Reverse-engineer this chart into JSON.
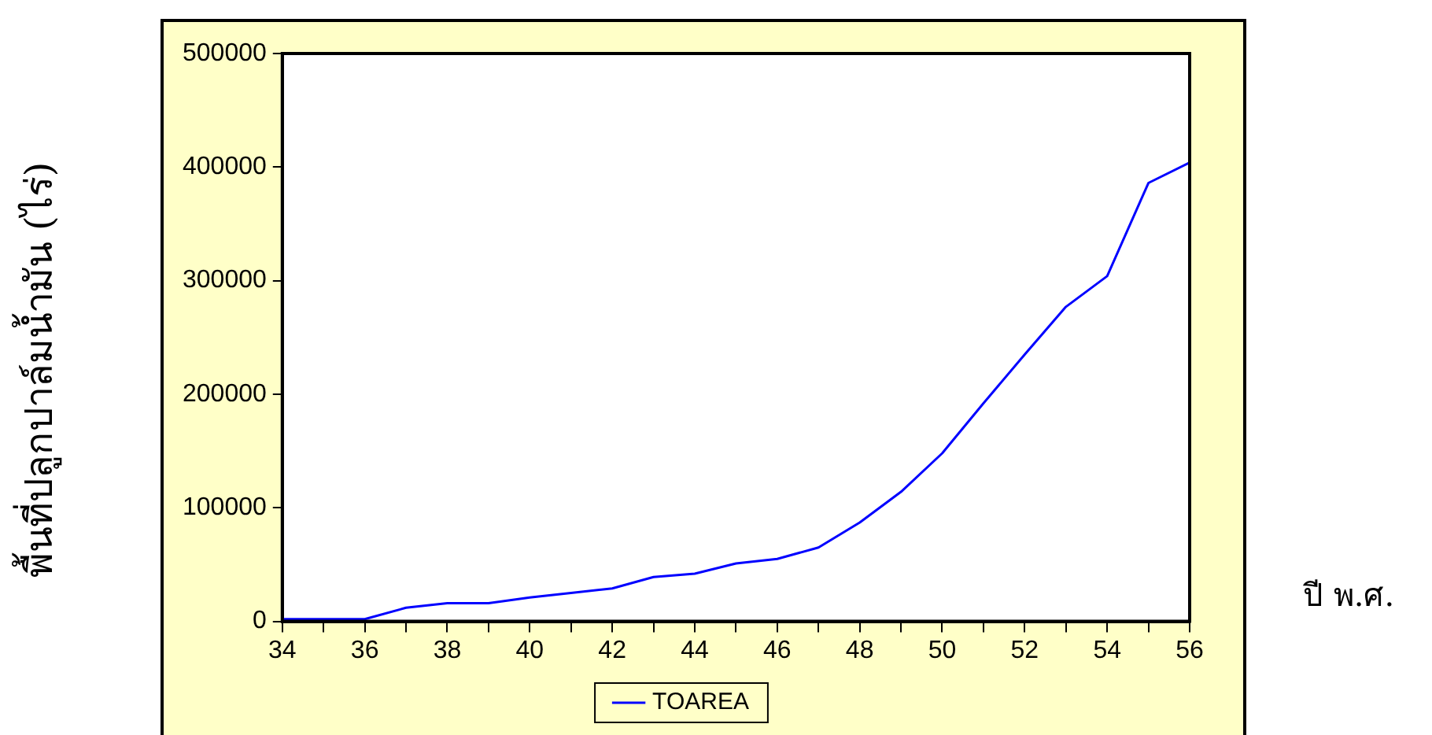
{
  "chart_data": {
    "type": "line",
    "xlabel": "ปี พ.ศ.",
    "ylabel": "พื้นที่ปลูกปาล์มน้ำมัน (ไร่)",
    "x": [
      34,
      35,
      36,
      37,
      38,
      39,
      40,
      41,
      42,
      43,
      44,
      45,
      46,
      47,
      48,
      49,
      50,
      51,
      52,
      53,
      54,
      55,
      56
    ],
    "series": [
      {
        "name": "TOAREA",
        "color": "#0000ff",
        "values": [
          2000,
          2000,
          2000,
          12000,
          16000,
          16000,
          21000,
          25000,
          29000,
          39000,
          42000,
          51000,
          55000,
          65000,
          87000,
          114000,
          148000,
          192000,
          235000,
          277000,
          304000,
          386000,
          404000
        ]
      }
    ],
    "xlim": [
      34,
      56
    ],
    "xticks": [
      34,
      {
        "value": 35,
        "label": null
      },
      36,
      {
        "value": 37,
        "label": null
      },
      38,
      {
        "value": 39,
        "label": null
      },
      40,
      {
        "value": 41,
        "label": null
      },
      42,
      {
        "value": 43,
        "label": null
      },
      44,
      {
        "value": 45,
        "label": null
      },
      46,
      {
        "value": 47,
        "label": null
      },
      48,
      {
        "value": 49,
        "label": null
      },
      50,
      {
        "value": 51,
        "label": null
      },
      52,
      {
        "value": 53,
        "label": null
      },
      54,
      {
        "value": 55,
        "label": null
      },
      56
    ],
    "ylim": [
      0,
      500000
    ],
    "yticks": [
      0,
      100000,
      200000,
      300000,
      400000,
      500000
    ],
    "grid": false,
    "legend": "bottom",
    "marker": "none",
    "line_style": "solid"
  }
}
